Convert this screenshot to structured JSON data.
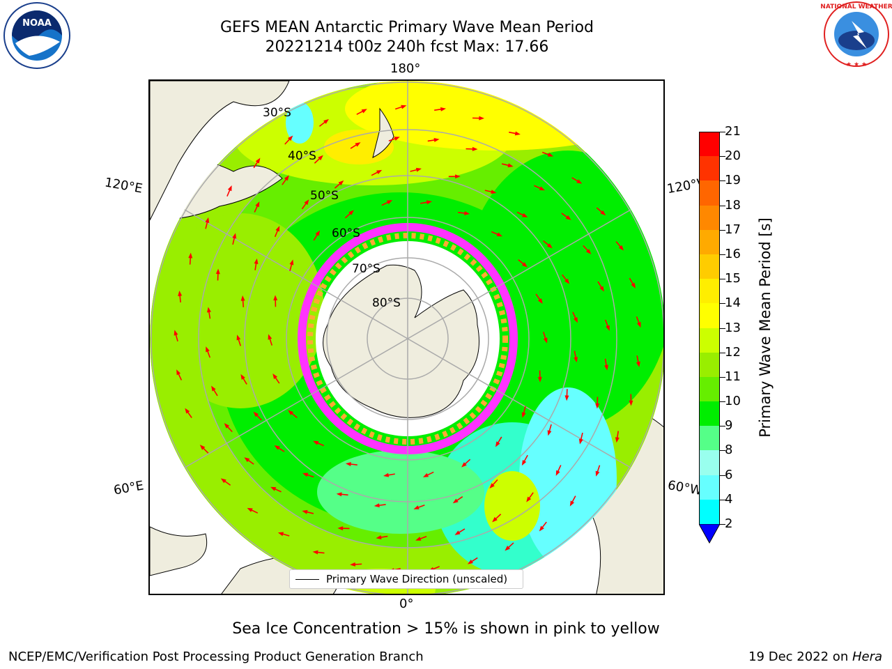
{
  "header": {
    "title_line1": "GEFS MEAN Antarctic Primary Wave Mean Period",
    "title_line2": "20221214 t00z 240h fcst   Max: 17.66"
  },
  "logos": {
    "left_icon": "noaa-logo",
    "left_text": "NOAA",
    "right_icon": "nws-logo",
    "right_text": "NATIONAL WEATHER SERVICE"
  },
  "map": {
    "projection": "south-polar-stereographic",
    "lon_labels": {
      "top": "180°",
      "bottom": "0°",
      "left_upper": "120°E",
      "left_lower": "60°E",
      "right_upper": "120°W",
      "right_lower": "60°W"
    },
    "lat_labels": [
      "30°S",
      "40°S",
      "50°S",
      "60°S",
      "70°S",
      "80°S"
    ],
    "legend_text": "Primary Wave Direction (unscaled)",
    "arrow_color": "#ff0000",
    "land_color": "#efedde",
    "sea_ice_note_colors": [
      "#ff33ff",
      "#ffaa33",
      "#ffff66",
      "#33ffff"
    ]
  },
  "colorbar": {
    "label": "Primary Wave Mean Period [s]",
    "ticks": [
      "21",
      "20",
      "19",
      "18",
      "17",
      "16",
      "15",
      "14",
      "13",
      "12",
      "11",
      "10",
      "9",
      "8",
      "6",
      "4",
      "2"
    ],
    "colors": [
      "#ff0000",
      "#ff3300",
      "#ff6600",
      "#ff8800",
      "#ffaa00",
      "#ffcc00",
      "#ffee00",
      "#ffff00",
      "#ccff00",
      "#99ee00",
      "#66ee00",
      "#00ee00",
      "#55ff88",
      "#99ffee",
      "#66ffff",
      "#00ffff",
      "#00aaff",
      "#0066ff",
      "#0000ff"
    ],
    "extend_color": "#0000ff"
  },
  "subtitle": "Sea Ice Concentration > 15% is shown in pink to yellow",
  "footer": {
    "left": "NCEP/EMC/Verification Post Processing Product Generation Branch",
    "right_prefix": "19 Dec 2022 on ",
    "right_machine": "Hera"
  }
}
